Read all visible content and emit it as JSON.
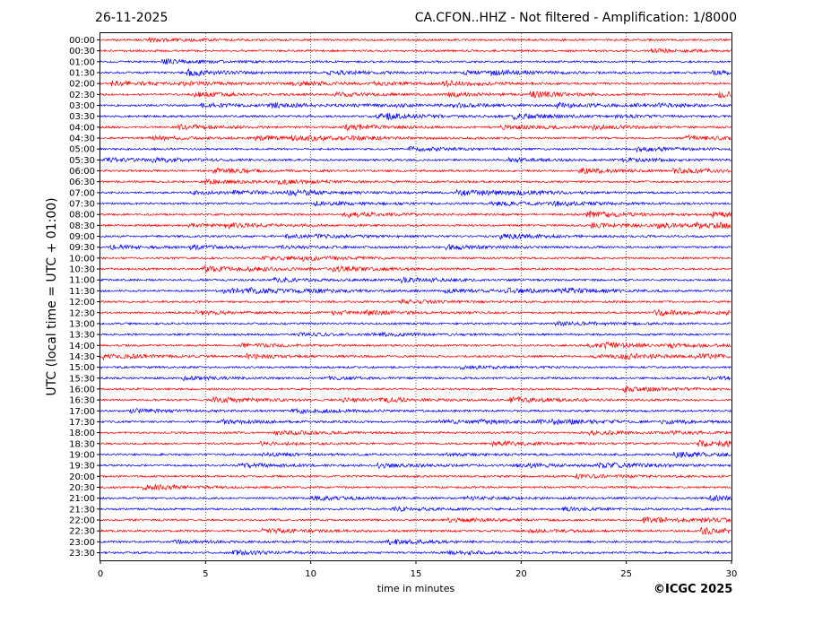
{
  "header": {
    "date": "26-11-2025",
    "title": "CA.CFON..HHZ - Not filtered - Amplification: 1/8000"
  },
  "footer": {
    "copyright": "©ICGC 2025"
  },
  "chart_data": {
    "type": "line",
    "title": "CA.CFON..HHZ - Not filtered - Amplification: 1/8000",
    "xlabel": "time in minutes",
    "ylabel": "UTC (local time = UTC + 01:00)",
    "xlim": [
      0,
      30
    ],
    "xticks": [
      0,
      5,
      10,
      15,
      20,
      25,
      30
    ],
    "grid": "vertical dotted lines at x ticks",
    "rows": [
      "00:00",
      "00:30",
      "01:00",
      "01:30",
      "02:00",
      "02:30",
      "03:00",
      "03:30",
      "04:00",
      "04:30",
      "05:00",
      "05:30",
      "06:00",
      "06:30",
      "07:00",
      "07:30",
      "08:00",
      "08:30",
      "09:00",
      "09:30",
      "10:00",
      "10:30",
      "11:00",
      "11:30",
      "12:00",
      "12:30",
      "13:00",
      "13:30",
      "14:00",
      "14:30",
      "15:00",
      "15:30",
      "16:00",
      "16:30",
      "17:00",
      "17:30",
      "18:00",
      "18:30",
      "19:00",
      "19:30",
      "20:00",
      "20:30",
      "21:00",
      "21:30",
      "22:00",
      "22:30",
      "23:00",
      "23:30"
    ],
    "trace_colors": [
      "#ff0000",
      "#0000ff"
    ],
    "trace_color_pattern": "alternating pairs: two red rows, then two blue rows",
    "signal": "continuous low-amplitude background noise on every row, no distinct events"
  }
}
